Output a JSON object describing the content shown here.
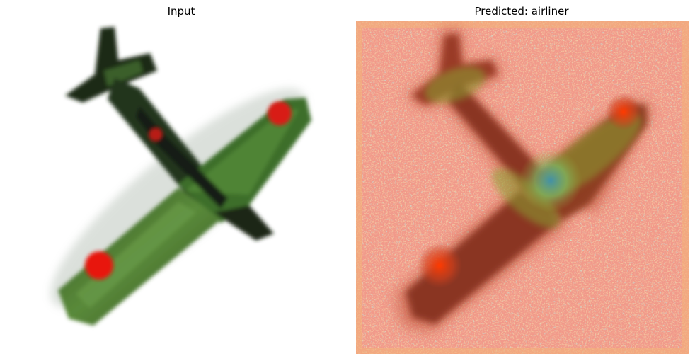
{
  "figure": {
    "panels": [
      {
        "title": "Input",
        "content": "input-image"
      },
      {
        "title": "Predicted: airliner",
        "content": "saliency-heatmap-overlay"
      }
    ],
    "prediction": {
      "label_prefix": "Predicted:",
      "class": "airliner"
    },
    "colors": {
      "background": "#ffffff",
      "plane_green": "#3d6b2a",
      "plane_dark": "#1f2f1a",
      "roundel_red": "#e8140f",
      "heat_base": "#f2a070",
      "heat_warm": "#f0d36a",
      "heat_cool": "#7ee0d0",
      "overlay_plane": "#8c3b22"
    }
  }
}
